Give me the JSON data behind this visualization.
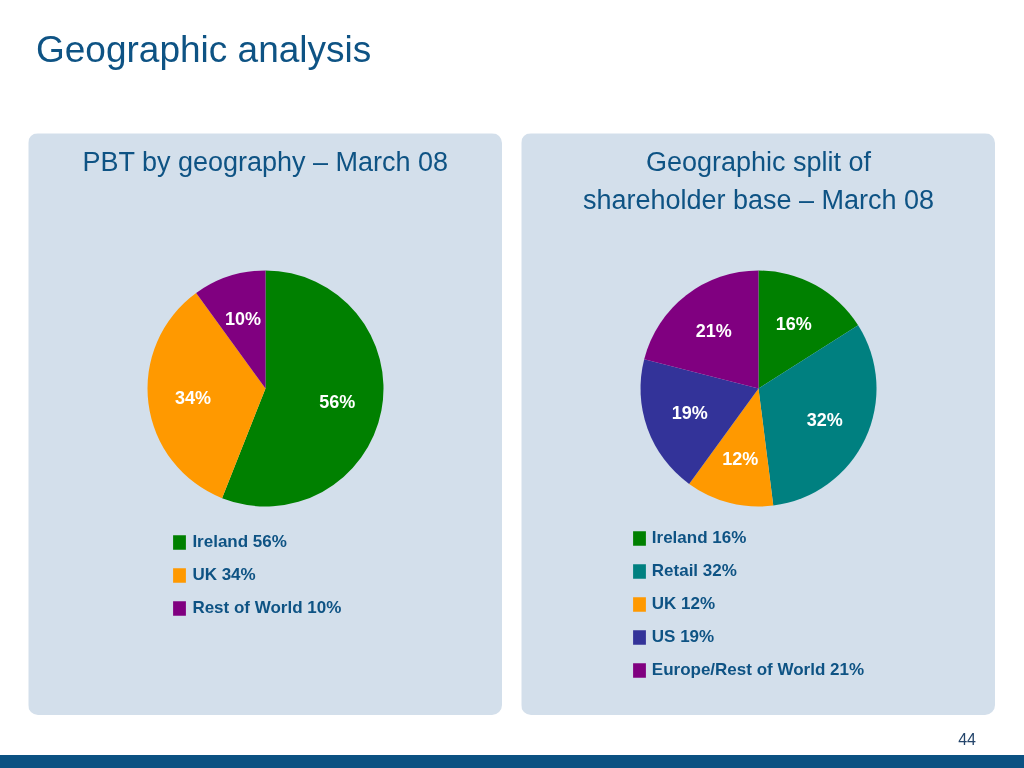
{
  "chart_data": [
    {
      "type": "pie",
      "title": "PBT by geography – March 08",
      "categories": [
        "Ireland 56%",
        "UK 34%",
        "Rest of World 10%"
      ],
      "values": [
        56,
        34,
        10
      ],
      "colors": [
        "#008000",
        "#ff9900",
        "#800080"
      ],
      "value_labels": [
        "56%",
        "34%",
        "10%"
      ],
      "legend": "bottom",
      "annotations": [
        "Geographic analysis",
        "44"
      ]
    },
    {
      "type": "pie",
      "title": "Geographic split of shareholder base – March 08",
      "categories": [
        "Ireland 16%",
        "Retail 32%",
        "UK 12%",
        "US 19%",
        "Europe/Rest of World 21%"
      ],
      "values": [
        16,
        32,
        12,
        19,
        21
      ],
      "colors": [
        "#008000",
        "#008080",
        "#ff9900",
        "#333399",
        "#800080"
      ],
      "value_labels": [
        "16%",
        "32%",
        "12%",
        "19%",
        "21%"
      ],
      "legend": "bottom"
    }
  ]
}
